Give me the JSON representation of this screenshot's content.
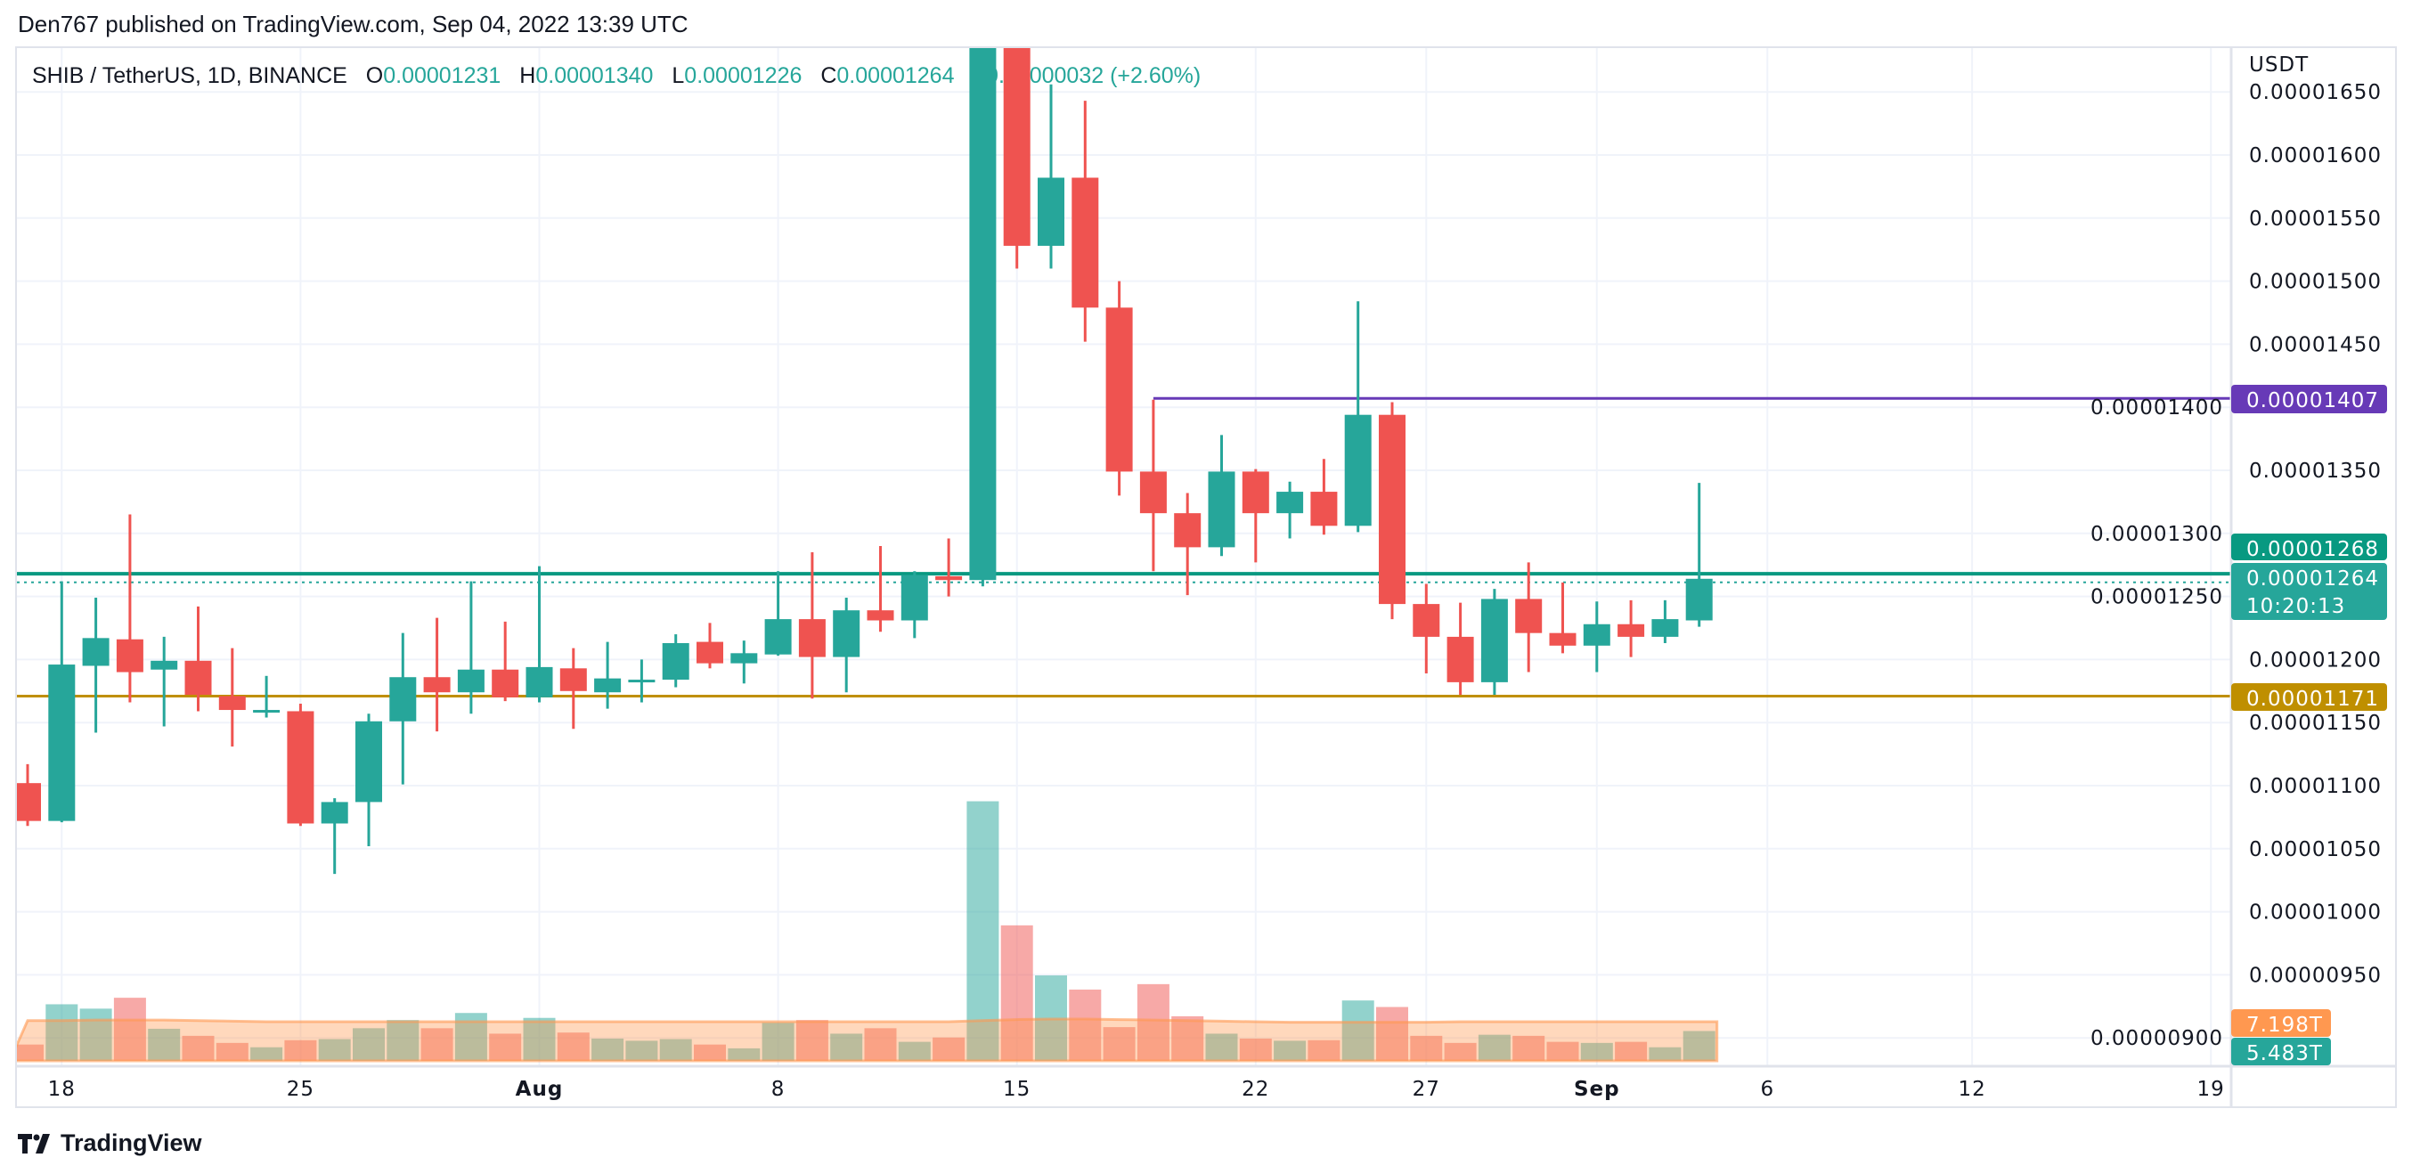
{
  "header": {
    "published": "Den767 published on TradingView.com, Sep 04, 2022 13:39 UTC"
  },
  "legend": {
    "symbol": "SHIB / TetherUS, 1D, BINANCE",
    "o_label": "O",
    "o": "0.00001231",
    "h_label": "H",
    "h": "0.00001340",
    "l_label": "L",
    "l": "0.00001226",
    "c_label": "C",
    "c": "0.00001264",
    "change": "+0.00000032 (+2.60%)"
  },
  "price_axis": {
    "currency": "USDT",
    "ticks": [
      "0.00001650",
      "0.00001600",
      "0.00001550",
      "0.00001500",
      "0.00001450",
      "0.00001400",
      "0.00001350",
      "0.00001300",
      "0.00001250",
      "0.00001200",
      "0.00001150",
      "0.00001100",
      "0.00001050",
      "0.00001000",
      "0.00000950",
      "0.00000900"
    ]
  },
  "time_axis": {
    "ticks": [
      {
        "label": "18",
        "date": "2022-07-18"
      },
      {
        "label": "25",
        "date": "2022-07-25"
      },
      {
        "label": "Aug",
        "date": "2022-08-01"
      },
      {
        "label": "8",
        "date": "2022-08-08"
      },
      {
        "label": "15",
        "date": "2022-08-15"
      },
      {
        "label": "22",
        "date": "2022-08-22"
      },
      {
        "label": "27",
        "date": "2022-08-27"
      },
      {
        "label": "Sep",
        "date": "2022-09-01"
      },
      {
        "label": "6",
        "date": "2022-09-06"
      },
      {
        "label": "12",
        "date": "2022-09-12"
      },
      {
        "label": "19",
        "date": "2022-09-19"
      }
    ]
  },
  "markers": {
    "resistance": {
      "label": "0.00001407",
      "value": 1.407e-05,
      "color": "#673ab7",
      "from_date": "2022-08-19"
    },
    "last_line": {
      "label": "0.00001268",
      "value": 1.268e-05,
      "color": "#089981"
    },
    "current": {
      "label": "0.00001264",
      "value": 1.264e-05,
      "countdown": "10:20:13",
      "color": "#26a69a"
    },
    "support": {
      "label": "0.00001171",
      "value": 1.171e-05,
      "color": "#bf8f00"
    },
    "volume_ma": {
      "label": "7.198T",
      "color": "#ff9850"
    },
    "volume": {
      "label": "5.483T",
      "color": "#26a69a"
    }
  },
  "logo": {
    "text": "TradingView"
  },
  "colors": {
    "up": "#26a69a",
    "down": "#ef5350",
    "grid": "#f0f3fa",
    "border": "#e0e3eb"
  },
  "chart_data": {
    "type": "candlestick",
    "ylabel": "USDT",
    "ylim": [
      8.8e-06,
      1.68e-05
    ],
    "dates": [
      "2022-07-17",
      "2022-07-18",
      "2022-07-19",
      "2022-07-20",
      "2022-07-21",
      "2022-07-22",
      "2022-07-23",
      "2022-07-24",
      "2022-07-25",
      "2022-07-26",
      "2022-07-27",
      "2022-07-28",
      "2022-07-29",
      "2022-07-30",
      "2022-07-31",
      "2022-08-01",
      "2022-08-02",
      "2022-08-03",
      "2022-08-04",
      "2022-08-05",
      "2022-08-06",
      "2022-08-07",
      "2022-08-08",
      "2022-08-09",
      "2022-08-10",
      "2022-08-11",
      "2022-08-12",
      "2022-08-13",
      "2022-08-14",
      "2022-08-15",
      "2022-08-16",
      "2022-08-17",
      "2022-08-18",
      "2022-08-19",
      "2022-08-20",
      "2022-08-21",
      "2022-08-22",
      "2022-08-23",
      "2022-08-24",
      "2022-08-25",
      "2022-08-26",
      "2022-08-27",
      "2022-08-28",
      "2022-08-29",
      "2022-08-30",
      "2022-08-31",
      "2022-09-01",
      "2022-09-02",
      "2022-09-03",
      "2022-09-04"
    ],
    "open": [
      1.102e-05,
      1.072e-05,
      1.195e-05,
      1.216e-05,
      1.192e-05,
      1.199e-05,
      1.171e-05,
      1.159e-05,
      1.159e-05,
      1.07e-05,
      1.087e-05,
      1.151e-05,
      1.186e-05,
      1.174e-05,
      1.192e-05,
      1.17e-05,
      1.193e-05,
      1.174e-05,
      1.183e-05,
      1.184e-05,
      1.214e-05,
      1.197e-05,
      1.204e-05,
      1.232e-05,
      1.202e-05,
      1.239e-05,
      1.231e-05,
      1.266e-05,
      1.263e-05,
      1.73e-05,
      1.528e-05,
      1.582e-05,
      1.479e-05,
      1.349e-05,
      1.316e-05,
      1.289e-05,
      1.349e-05,
      1.316e-05,
      1.333e-05,
      1.306e-05,
      1.394e-05,
      1.244e-05,
      1.218e-05,
      1.182e-05,
      1.248e-05,
      1.221e-05,
      1.211e-05,
      1.228e-05,
      1.218e-05,
      1.231e-05
    ],
    "high": [
      1.117e-05,
      1.262e-05,
      1.249e-05,
      1.315e-05,
      1.218e-05,
      1.242e-05,
      1.209e-05,
      1.187e-05,
      1.165e-05,
      1.09e-05,
      1.157e-05,
      1.221e-05,
      1.233e-05,
      1.262e-05,
      1.23e-05,
      1.274e-05,
      1.209e-05,
      1.214e-05,
      1.2e-05,
      1.22e-05,
      1.229e-05,
      1.215e-05,
      1.27e-05,
      1.285e-05,
      1.249e-05,
      1.29e-05,
      1.27e-05,
      1.296e-05,
      1.78e-05,
      1.76e-05,
      1.656e-05,
      1.643e-05,
      1.5e-05,
      1.406e-05,
      1.332e-05,
      1.378e-05,
      1.351e-05,
      1.341e-05,
      1.359e-05,
      1.484e-05,
      1.404e-05,
      1.26e-05,
      1.245e-05,
      1.256e-05,
      1.277e-05,
      1.261e-05,
      1.246e-05,
      1.247e-05,
      1.247e-05,
      1.34e-05
    ],
    "low": [
      1.068e-05,
      1.071e-05,
      1.142e-05,
      1.166e-05,
      1.147e-05,
      1.159e-05,
      1.131e-05,
      1.154e-05,
      1.068e-05,
      1.03e-05,
      1.052e-05,
      1.101e-05,
      1.143e-05,
      1.157e-05,
      1.167e-05,
      1.166e-05,
      1.145e-05,
      1.161e-05,
      1.166e-05,
      1.178e-05,
      1.193e-05,
      1.181e-05,
      1.203e-05,
      1.169e-05,
      1.174e-05,
      1.222e-05,
      1.217e-05,
      1.25e-05,
      1.258e-05,
      1.51e-05,
      1.51e-05,
      1.452e-05,
      1.33e-05,
      1.27e-05,
      1.251e-05,
      1.282e-05,
      1.277e-05,
      1.296e-05,
      1.299e-05,
      1.301e-05,
      1.232e-05,
      1.189e-05,
      1.172e-05,
      1.172e-05,
      1.19e-05,
      1.205e-05,
      1.19e-05,
      1.202e-05,
      1.213e-05,
      1.226e-05
    ],
    "close": [
      1.072e-05,
      1.196e-05,
      1.217e-05,
      1.19e-05,
      1.199e-05,
      1.172e-05,
      1.16e-05,
      1.16e-05,
      1.07e-05,
      1.087e-05,
      1.151e-05,
      1.186e-05,
      1.174e-05,
      1.192e-05,
      1.17e-05,
      1.194e-05,
      1.175e-05,
      1.185e-05,
      1.184e-05,
      1.213e-05,
      1.197e-05,
      1.205e-05,
      1.232e-05,
      1.202e-05,
      1.239e-05,
      1.231e-05,
      1.267e-05,
      1.263e-05,
      1.73e-05,
      1.528e-05,
      1.582e-05,
      1.479e-05,
      1.349e-05,
      1.316e-05,
      1.289e-05,
      1.349e-05,
      1.316e-05,
      1.333e-05,
      1.306e-05,
      1.394e-05,
      1.244e-05,
      1.218e-05,
      1.182e-05,
      1.248e-05,
      1.221e-05,
      1.211e-05,
      1.228e-05,
      1.218e-05,
      1.232e-05,
      1.264e-05
    ],
    "volume_unit": "T",
    "volume": [
      3.0,
      10.4,
      9.6,
      11.6,
      5.9,
      4.6,
      3.3,
      2.5,
      3.8,
      4.0,
      6.0,
      7.5,
      6.0,
      8.8,
      5.0,
      7.9,
      5.2,
      4.1,
      3.7,
      4.0,
      3.0,
      2.3,
      7.0,
      7.5,
      5.0,
      6.0,
      3.5,
      4.3,
      47.7,
      24.9,
      15.7,
      13.1,
      6.2,
      14.1,
      8.2,
      5.0,
      4.1,
      3.7,
      3.8,
      11.1,
      9.9,
      4.6,
      3.3,
      4.8,
      4.6,
      3.5,
      3.3,
      3.5,
      2.5,
      5.483
    ],
    "volume_ma": [
      7.4,
      7.4,
      7.5,
      7.5,
      7.5,
      7.4,
      7.3,
      7.2,
      7.2,
      7.2,
      7.2,
      7.2,
      7.2,
      7.2,
      7.2,
      7.2,
      7.2,
      7.2,
      7.2,
      7.2,
      7.2,
      7.2,
      7.2,
      7.2,
      7.2,
      7.2,
      7.2,
      7.2,
      7.4,
      7.6,
      7.7,
      7.7,
      7.6,
      7.5,
      7.4,
      7.3,
      7.2,
      7.1,
      7.1,
      7.1,
      7.1,
      7.1,
      7.2,
      7.2,
      7.2,
      7.2,
      7.2,
      7.2,
      7.2,
      7.198
    ]
  }
}
